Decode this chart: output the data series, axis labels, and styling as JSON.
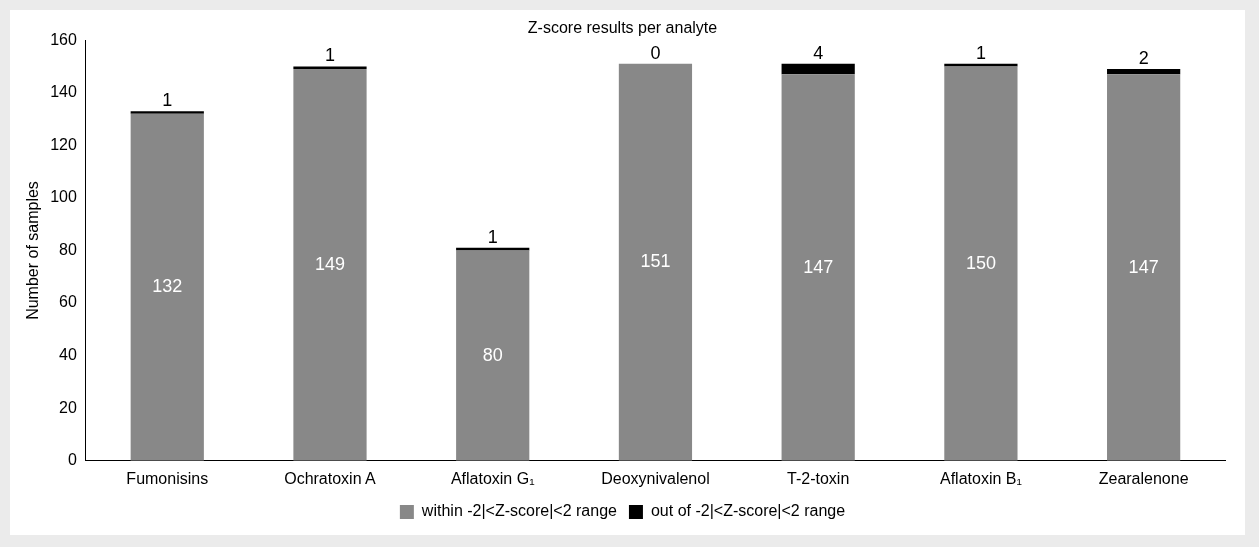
{
  "chart_data": {
    "type": "bar",
    "title": "Z-score results per analyte",
    "ylabel": "Number of samples",
    "categories": [
      "Fumonisins",
      "Ochratoxin A",
      "Aflatoxin G₁",
      "Deoxynivalenol",
      "T-2-toxin",
      "Aflatoxin B₁",
      "Zearalenone"
    ],
    "stacked": true,
    "series": [
      {
        "name": "within -2|<Z-score|<2 range",
        "color": "#888888",
        "values": [
          132,
          149,
          80,
          151,
          147,
          150,
          147
        ]
      },
      {
        "name": "out of -2|<Z-score|<2 range",
        "color": "#000000",
        "values": [
          1,
          1,
          1,
          0,
          4,
          1,
          2
        ]
      }
    ],
    "ylim": [
      0,
      160
    ],
    "yticks": [
      0,
      20,
      40,
      60,
      80,
      100,
      120,
      140,
      160
    ],
    "grid": false,
    "legend": "bottom",
    "data_labels": true
  }
}
